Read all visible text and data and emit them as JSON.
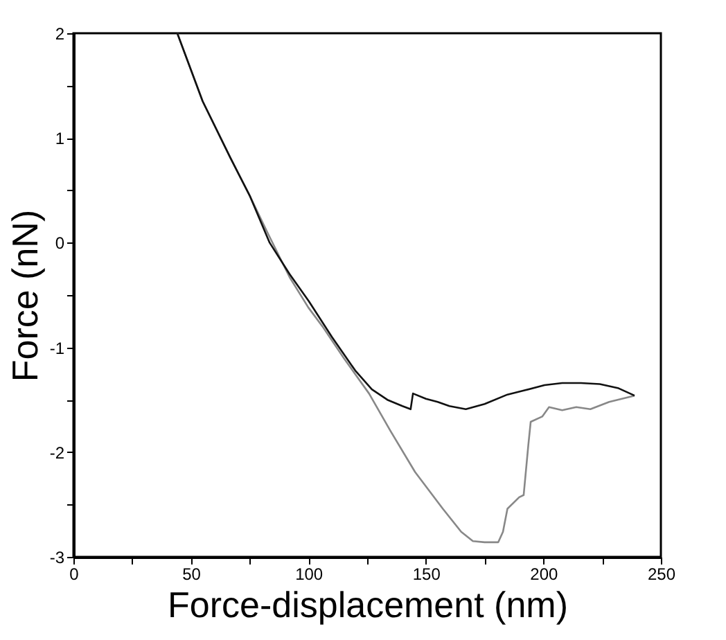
{
  "chart_data": {
    "type": "line",
    "xlabel": "Force-displacement (nm)",
    "ylabel": "Force (nN)",
    "xlim": [
      0,
      250
    ],
    "ylim": [
      -3,
      2
    ],
    "xticks": [
      0,
      {
        "value": 25,
        "label": null
      },
      50,
      {
        "value": 75,
        "label": null
      },
      100,
      {
        "value": 125,
        "label": null
      },
      150,
      {
        "value": 175,
        "label": null
      },
      200,
      {
        "value": 225,
        "label": null
      },
      250
    ],
    "yticks": [
      -3,
      {
        "value": -2.5,
        "label": null
      },
      -2,
      {
        "value": -1.5,
        "label": null
      },
      -1,
      {
        "value": -0.5,
        "label": null
      },
      0,
      {
        "value": 0.5,
        "label": null
      },
      1,
      {
        "value": 1.5,
        "label": null
      },
      2
    ],
    "grid": false,
    "legend": false,
    "marker": "none",
    "line_style": "solid",
    "series": [
      {
        "color": "#888888",
        "x": [
          44.2,
          55,
          66.8,
          75,
          82.5,
          92,
          100,
          106,
          115,
          125.8,
          135,
          145.4,
          157.2,
          165,
          170,
          175,
          180.8,
          182.8,
          184.7,
          189.7,
          191.6,
          193.6,
          194.6,
          199.5,
          202.4,
          208,
          214,
          220,
          228,
          238.8
        ],
        "values": [
          2,
          1.35,
          0.81,
          0.45,
          0.1,
          -0.33,
          -0.62,
          -0.8,
          -1.1,
          -1.44,
          -1.8,
          -2.19,
          -2.54,
          -2.76,
          -2.85,
          -2.86,
          -2.86,
          -2.76,
          -2.54,
          -2.43,
          -2.41,
          -1.93,
          -1.71,
          -1.66,
          -1.57,
          -1.6,
          -1.57,
          -1.59,
          -1.52,
          -1.46
        ]
      },
      {
        "color": "#111111",
        "x": [
          44.2,
          55,
          66.8,
          75,
          83.5,
          92,
          100.2,
          110,
          119.9,
          127,
          133.6,
          140,
          143.5,
          144.5,
          150,
          155,
          160,
          167,
          175,
          184.7,
          192,
          200.5,
          208,
          216,
          224,
          232,
          238.8
        ],
        "values": [
          2,
          1.35,
          0.81,
          0.45,
          0.0,
          -0.3,
          -0.56,
          -0.9,
          -1.22,
          -1.4,
          -1.5,
          -1.56,
          -1.59,
          -1.44,
          -1.49,
          -1.52,
          -1.56,
          -1.59,
          -1.54,
          -1.45,
          -1.41,
          -1.36,
          -1.34,
          -1.34,
          -1.35,
          -1.39,
          -1.46
        ]
      }
    ]
  }
}
